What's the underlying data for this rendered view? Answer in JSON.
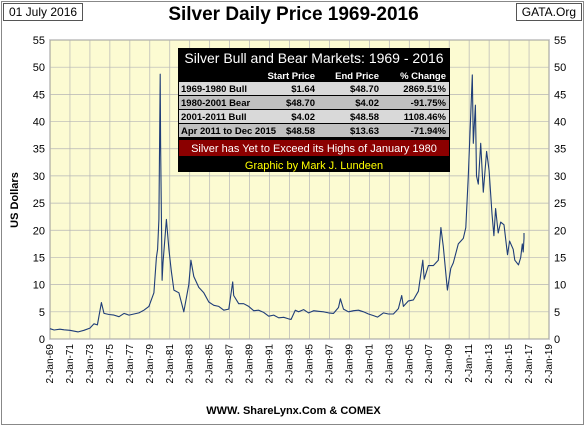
{
  "date_label": "01 July 2016",
  "source_label": "GATA.Org",
  "credit": "WWW. ShareLynx.Com & COMEX",
  "colors": {
    "plot_bg": "#fcfbd2",
    "line": "#1f3d78",
    "table_bg": "#000000",
    "table_row_light": "#d9d9d9",
    "table_row_dark": "#c0c0c0",
    "banner_red": "#8b0000",
    "banner_text_yellow": "#ffff00"
  },
  "chart_data": {
    "type": "line",
    "title": "Silver Daily Price 1969-2016",
    "ylabel": "US Dollars",
    "xlabel": "",
    "ylim": [
      0,
      55
    ],
    "yticks": [
      0,
      5,
      10,
      15,
      20,
      25,
      30,
      35,
      40,
      45,
      50,
      55
    ],
    "xlim": [
      "1969-01-02",
      "2019-01-02"
    ],
    "xticks": [
      "2-Jan-69",
      "2-Jan-71",
      "2-Jan-73",
      "2-Jan-75",
      "2-Jan-77",
      "2-Jan-79",
      "2-Jan-81",
      "2-Jan-83",
      "2-Jan-85",
      "2-Jan-87",
      "2-Jan-89",
      "2-Jan-91",
      "2-Jan-93",
      "2-Jan-95",
      "2-Jan-97",
      "2-Jan-99",
      "2-Jan-01",
      "2-Jan-03",
      "2-Jan-05",
      "2-Jan-07",
      "2-Jan-09",
      "2-Jan-11",
      "2-Jan-13",
      "2-Jan-15",
      "2-Jan-17",
      "2-Jan-19"
    ],
    "grid": "vertical and horizontal",
    "series": [
      {
        "values": [
          [
            "1969-01-02",
            1.9
          ],
          [
            "1969-06-01",
            1.65
          ],
          [
            "1970-01-01",
            1.8
          ],
          [
            "1970-06-01",
            1.7
          ],
          [
            "1971-01-01",
            1.6
          ],
          [
            "1971-11-01",
            1.3
          ],
          [
            "1972-06-01",
            1.6
          ],
          [
            "1973-01-01",
            2.0
          ],
          [
            "1973-06-01",
            2.8
          ],
          [
            "1973-10-01",
            2.6
          ],
          [
            "1974-02-26",
            6.7
          ],
          [
            "1974-06-01",
            4.7
          ],
          [
            "1974-12-01",
            4.5
          ],
          [
            "1975-06-01",
            4.4
          ],
          [
            "1975-12-01",
            4.1
          ],
          [
            "1976-06-01",
            4.7
          ],
          [
            "1976-12-01",
            4.4
          ],
          [
            "1977-06-01",
            4.6
          ],
          [
            "1977-12-01",
            4.8
          ],
          [
            "1978-06-01",
            5.3
          ],
          [
            "1978-12-01",
            6.0
          ],
          [
            "1979-06-01",
            8.5
          ],
          [
            "1979-09-01",
            15.0
          ],
          [
            "1979-10-15",
            16.5
          ],
          [
            "1979-12-01",
            22.0
          ],
          [
            "1980-01-17",
            48.7
          ],
          [
            "1980-02-01",
            36.0
          ],
          [
            "1980-03-27",
            10.8
          ],
          [
            "1980-05-01",
            14.0
          ],
          [
            "1980-09-01",
            22.0
          ],
          [
            "1980-12-01",
            16.5
          ],
          [
            "1981-03-01",
            12.5
          ],
          [
            "1981-06-01",
            9.0
          ],
          [
            "1981-12-01",
            8.5
          ],
          [
            "1982-06-01",
            5.0
          ],
          [
            "1982-12-01",
            10.0
          ],
          [
            "1983-02-15",
            14.5
          ],
          [
            "1983-06-01",
            11.5
          ],
          [
            "1983-12-01",
            9.5
          ],
          [
            "1984-06-01",
            8.5
          ],
          [
            "1984-12-01",
            6.8
          ],
          [
            "1985-06-01",
            6.2
          ],
          [
            "1985-12-01",
            6.0
          ],
          [
            "1986-06-01",
            5.3
          ],
          [
            "1986-12-01",
            5.5
          ],
          [
            "1987-04-25",
            10.5
          ],
          [
            "1987-06-01",
            8.0
          ],
          [
            "1987-12-01",
            6.5
          ],
          [
            "1988-06-01",
            6.5
          ],
          [
            "1988-12-01",
            6.0
          ],
          [
            "1989-06-01",
            5.2
          ],
          [
            "1989-12-01",
            5.3
          ],
          [
            "1990-06-01",
            4.9
          ],
          [
            "1990-12-01",
            4.2
          ],
          [
            "1991-06-01",
            4.4
          ],
          [
            "1991-12-01",
            3.9
          ],
          [
            "1992-06-01",
            4.0
          ],
          [
            "1992-12-01",
            3.7
          ],
          [
            "1993-03-01",
            3.6
          ],
          [
            "1993-08-01",
            5.3
          ],
          [
            "1993-12-01",
            5.0
          ],
          [
            "1994-06-01",
            5.4
          ],
          [
            "1994-12-01",
            4.8
          ],
          [
            "1995-06-01",
            5.2
          ],
          [
            "1995-12-01",
            5.1
          ],
          [
            "1996-06-01",
            5.0
          ],
          [
            "1996-12-01",
            4.8
          ],
          [
            "1997-06-01",
            4.7
          ],
          [
            "1997-12-01",
            5.8
          ],
          [
            "1998-02-05",
            7.4
          ],
          [
            "1998-06-01",
            5.5
          ],
          [
            "1998-12-01",
            5.0
          ],
          [
            "1999-06-01",
            5.2
          ],
          [
            "1999-12-01",
            5.3
          ],
          [
            "2000-06-01",
            5.0
          ],
          [
            "2000-12-01",
            4.6
          ],
          [
            "2001-06-01",
            4.3
          ],
          [
            "2001-11-01",
            4.02
          ],
          [
            "2002-06-01",
            4.8
          ],
          [
            "2002-12-01",
            4.6
          ],
          [
            "2003-06-01",
            4.6
          ],
          [
            "2003-12-01",
            5.6
          ],
          [
            "2004-04-01",
            8.0
          ],
          [
            "2004-06-01",
            6.0
          ],
          [
            "2004-12-01",
            7.0
          ],
          [
            "2005-06-01",
            7.2
          ],
          [
            "2005-12-01",
            8.8
          ],
          [
            "2006-05-11",
            14.5
          ],
          [
            "2006-07-01",
            11.0
          ],
          [
            "2006-12-01",
            13.5
          ],
          [
            "2007-06-01",
            13.5
          ],
          [
            "2007-12-01",
            14.5
          ],
          [
            "2008-03-05",
            20.5
          ],
          [
            "2008-06-01",
            17.0
          ],
          [
            "2008-10-27",
            9.0
          ],
          [
            "2009-03-01",
            13.0
          ],
          [
            "2009-06-01",
            14.0
          ],
          [
            "2009-12-01",
            17.5
          ],
          [
            "2010-06-01",
            18.5
          ],
          [
            "2010-09-01",
            20.5
          ],
          [
            "2010-12-01",
            30.0
          ],
          [
            "2011-04-28",
            48.58
          ],
          [
            "2011-06-01",
            36.0
          ],
          [
            "2011-08-20",
            43.0
          ],
          [
            "2011-09-26",
            30.0
          ],
          [
            "2011-12-01",
            28.5
          ],
          [
            "2012-02-28",
            36.0
          ],
          [
            "2012-06-01",
            27.0
          ],
          [
            "2012-10-01",
            34.5
          ],
          [
            "2013-01-01",
            31.0
          ],
          [
            "2013-04-16",
            23.0
          ],
          [
            "2013-06-27",
            19.0
          ],
          [
            "2013-08-28",
            24.0
          ],
          [
            "2013-12-01",
            19.5
          ],
          [
            "2014-03-01",
            21.5
          ],
          [
            "2014-07-01",
            21.0
          ],
          [
            "2014-11-05",
            15.5
          ],
          [
            "2015-01-20",
            18.0
          ],
          [
            "2015-06-01",
            16.5
          ],
          [
            "2015-08-01",
            14.5
          ],
          [
            "2015-12-14",
            13.63
          ],
          [
            "2016-03-01",
            15.0
          ],
          [
            "2016-05-01",
            17.5
          ],
          [
            "2016-06-01",
            16.0
          ],
          [
            "2016-06-30",
            18.5
          ],
          [
            "2016-07-01",
            19.5
          ]
        ]
      }
    ],
    "table": {
      "title": "Silver Bull and Bear Markets: 1969 - 2016",
      "headers": [
        "",
        "Start Price",
        "End Price",
        "% Change"
      ],
      "rows": [
        [
          "1969-1980 Bull",
          "$1.64",
          "$48.70",
          "2869.51%"
        ],
        [
          "1980-2001 Bear",
          "$48.70",
          "$4.02",
          "-91.75%"
        ],
        [
          "2001-2011 Bull",
          "$4.02",
          "$48.58",
          "1108.46%"
        ],
        [
          "Apr 2011 to Dec 2015",
          "$48.58",
          "$13.63",
          "-71.94%"
        ]
      ],
      "banner": "Silver has Yet to Exceed its Highs of January 1980",
      "footer": "Graphic by Mark J. Lundeen"
    }
  }
}
